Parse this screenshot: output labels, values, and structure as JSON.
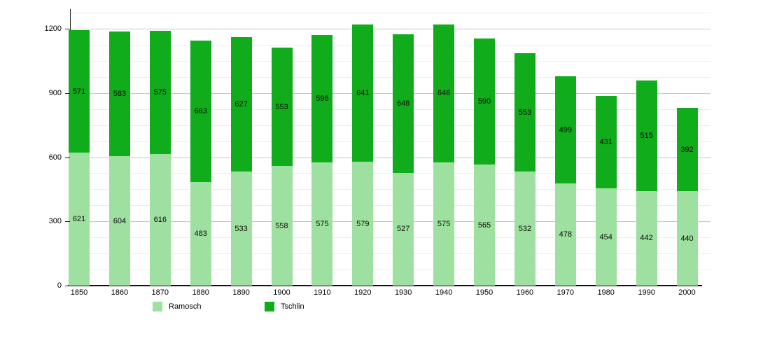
{
  "chart_data": {
    "type": "bar",
    "stacked": true,
    "title": "",
    "xlabel": "",
    "ylabel": "",
    "categories": [
      "1850",
      "1860",
      "1870",
      "1880",
      "1890",
      "1900",
      "1910",
      "1920",
      "1930",
      "1940",
      "1950",
      "1960",
      "1970",
      "1980",
      "1990",
      "2000"
    ],
    "series": [
      {
        "name": "Ramosch",
        "color": "#9EE09F",
        "values": [
          621,
          604,
          616,
          483,
          533,
          558,
          575,
          579,
          527,
          575,
          565,
          532,
          478,
          454,
          442,
          440
        ]
      },
      {
        "name": "Tschlin",
        "color": "#10AC1C",
        "values": [
          571,
          583,
          575,
          663,
          627,
          553,
          596,
          641,
          648,
          646,
          590,
          553,
          499,
          431,
          515,
          392
        ]
      }
    ],
    "ylim": [
      0,
      1292
    ],
    "yticks": [
      0,
      300,
      600,
      900,
      1200
    ],
    "ytick_labels": [
      "0",
      "300",
      "600",
      "900",
      "1200"
    ],
    "minor_grid_step": 75,
    "grid": true,
    "bar_value_labels_shown": true,
    "legend_position": "bottom"
  },
  "legend": {
    "items": [
      {
        "label": "Ramosch",
        "color": "#9EE09F"
      },
      {
        "label": "Tschlin",
        "color": "#10AC1C"
      }
    ]
  },
  "colors": {
    "axis": "#222222",
    "major_grid": "#c6c6c6",
    "minor_grid": "#ececec",
    "label_text": "#0b0b0b"
  }
}
